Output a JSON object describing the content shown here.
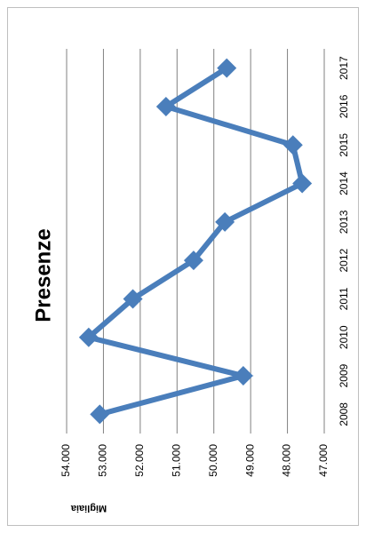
{
  "chart_data": {
    "type": "line",
    "title": "Presenze",
    "y_label": "Migliaia",
    "categories": [
      "2008",
      "2009",
      "2010",
      "2011",
      "2012",
      "2013",
      "2014",
      "2015",
      "2016",
      "2017"
    ],
    "values": [
      53.1,
      49.2,
      53.4,
      52.2,
      50.55,
      49.7,
      47.6,
      47.85,
      51.3,
      49.65
    ],
    "color": "#4a7ebb",
    "ylim": [
      47,
      54
    ],
    "yticks": [
      {
        "value": 47,
        "label": "47.000"
      },
      {
        "value": 48,
        "label": "48.000"
      },
      {
        "value": 49,
        "label": "49.000"
      },
      {
        "value": 50,
        "label": "50.000"
      },
      {
        "value": 51,
        "label": "51.000"
      },
      {
        "value": 52,
        "label": "52.000"
      },
      {
        "value": 53,
        "label": "53.000"
      },
      {
        "value": 54,
        "label": "54.000"
      }
    ],
    "grid": true
  }
}
